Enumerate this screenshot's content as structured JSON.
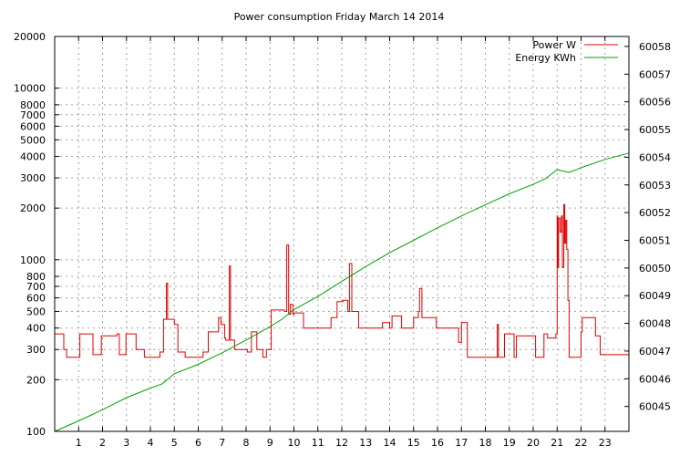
{
  "chart_data": {
    "type": "line",
    "title": "Power consumption Friday March 14 2014",
    "x_ticks": [
      1,
      2,
      3,
      4,
      5,
      6,
      7,
      8,
      9,
      10,
      11,
      12,
      13,
      14,
      15,
      16,
      17,
      18,
      19,
      20,
      21,
      22,
      23
    ],
    "xlim": [
      0,
      24
    ],
    "y_left": {
      "scale": "log",
      "lim": [
        100,
        20000
      ],
      "ticks": [
        100,
        200,
        300,
        400,
        500,
        600,
        700,
        800,
        1000,
        2000,
        3000,
        4000,
        5000,
        6000,
        7000,
        8000,
        10000,
        20000
      ],
      "tick_labels": [
        "100",
        "200",
        "300",
        "400",
        "500",
        "600",
        "700",
        "800",
        "1000",
        "2000",
        "3000",
        "4000",
        "5000",
        "6000",
        "7000",
        "8000",
        "10000",
        "20000"
      ]
    },
    "y_right": {
      "scale": "linear",
      "lim": [
        60044.1,
        60058.36
      ],
      "ticks": [
        60045,
        60046,
        60047,
        60048,
        60049,
        60050,
        60051,
        60052,
        60053,
        60054,
        60055,
        60056,
        60057,
        60058
      ],
      "tick_labels": [
        "60045",
        "60046",
        "60047",
        "60048",
        "60049",
        "60050",
        "60051",
        "60052",
        "60053",
        "60054",
        "60055",
        "60056",
        "60057",
        "60058"
      ]
    },
    "grid": true,
    "legend": {
      "position": "top-right"
    },
    "series": [
      {
        "name": "Power W",
        "axis": "left",
        "color": "#e00000",
        "step": true,
        "x": [
          0,
          0.38,
          0.5,
          1.05,
          1.6,
          1.95,
          2.6,
          2.7,
          2.98,
          3.4,
          3.75,
          4.4,
          4.55,
          4.67,
          4.72,
          5.0,
          5.15,
          5.45,
          6.2,
          6.42,
          6.8,
          6.85,
          6.95,
          7.1,
          7.15,
          7.3,
          7.35,
          7.52,
          8.05,
          8.22,
          8.45,
          8.7,
          8.85,
          9.05,
          9.6,
          9.7,
          9.78,
          9.85,
          9.95,
          10.0,
          10.4,
          11.0,
          11.55,
          11.8,
          12.05,
          12.25,
          12.32,
          12.42,
          12.7,
          13.4,
          13.7,
          14.0,
          14.1,
          14.5,
          15.0,
          15.2,
          15.25,
          15.35,
          15.95,
          16.75,
          16.88,
          17.0,
          17.25,
          17.65,
          17.9,
          18.4,
          18.5,
          18.55,
          18.8,
          19.2,
          19.3,
          19.45,
          20.1,
          20.45,
          20.6,
          20.95,
          21.0,
          21.02,
          21.06,
          21.12,
          21.18,
          21.22,
          21.28,
          21.32,
          21.36,
          21.4,
          21.45,
          21.5,
          21.55,
          22.0,
          22.05,
          22.25,
          22.6,
          22.8,
          23.5,
          24
        ],
        "y": [
          370,
          300,
          270,
          370,
          280,
          360,
          370,
          280,
          370,
          300,
          270,
          290,
          450,
          730,
          450,
          420,
          290,
          270,
          290,
          380,
          380,
          460,
          420,
          350,
          340,
          920,
          340,
          300,
          290,
          380,
          300,
          270,
          300,
          510,
          500,
          1220,
          480,
          550,
          480,
          490,
          400,
          400,
          460,
          570,
          580,
          500,
          950,
          500,
          400,
          400,
          430,
          400,
          470,
          400,
          460,
          500,
          680,
          460,
          400,
          400,
          330,
          430,
          270,
          270,
          270,
          270,
          420,
          270,
          370,
          270,
          360,
          360,
          270,
          370,
          350,
          370,
          1800,
          900,
          1750,
          1450,
          1800,
          900,
          2100,
          1250,
          1700,
          1150,
          580,
          270,
          270,
          380,
          460,
          460,
          360,
          280,
          280,
          280
        ]
      },
      {
        "name": "Energy KWh",
        "axis": "right",
        "color": "#00a000",
        "step": false,
        "x": [
          0,
          1,
          2,
          3,
          4,
          4.5,
          5,
          6,
          7,
          8,
          9,
          9.5,
          10,
          11,
          12,
          13,
          14,
          15,
          16,
          17,
          18,
          19,
          20,
          20.5,
          21,
          21.5,
          22,
          23,
          24
        ],
        "y": [
          60044.1,
          60044.48,
          60044.88,
          60045.32,
          60045.66,
          60045.82,
          60046.18,
          60046.52,
          60046.94,
          60047.4,
          60047.88,
          60048.15,
          60048.5,
          60048.97,
          60049.52,
          60050.05,
          60050.55,
          60051.0,
          60051.45,
          60051.88,
          60052.28,
          60052.68,
          60053.02,
          60053.22,
          60053.55,
          60053.45,
          60053.62,
          60053.92,
          60054.15
        ]
      }
    ]
  }
}
